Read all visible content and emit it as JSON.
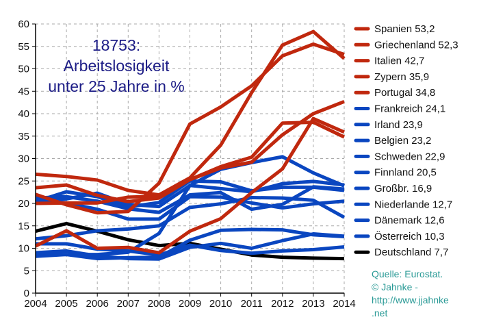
{
  "chart_data": {
    "type": "line",
    "title": [
      "18753:",
      "Arbeitslosigkeit",
      "unter 25 Jahre in %"
    ],
    "xlabel": "",
    "ylabel": "",
    "x": [
      2004,
      2005,
      2006,
      2007,
      2008,
      2009,
      2010,
      2011,
      2012,
      2013,
      2014
    ],
    "ylim": [
      0,
      60
    ],
    "yticks": [
      0,
      5,
      10,
      15,
      20,
      25,
      30,
      35,
      40,
      45,
      50,
      55,
      60
    ],
    "grid": true,
    "legend_position": "right",
    "series": [
      {
        "name": "Spanien 53,2",
        "color": "#c0280e",
        "values": [
          22.0,
          19.7,
          17.9,
          18.2,
          24.5,
          37.7,
          41.5,
          46.2,
          52.9,
          55.5,
          53.2
        ]
      },
      {
        "name": "Griechenland 52,3",
        "color": "#c0280e",
        "values": [
          26.5,
          26.0,
          25.2,
          22.9,
          21.9,
          25.7,
          33.0,
          44.7,
          55.3,
          58.3,
          52.3
        ]
      },
      {
        "name": "Italien 42,7",
        "color": "#c0280e",
        "values": [
          23.5,
          24.1,
          21.8,
          20.4,
          21.2,
          25.3,
          27.9,
          29.2,
          35.3,
          40.0,
          42.7
        ]
      },
      {
        "name": "Zypern 35,9",
        "color": "#c0280e",
        "values": [
          10.5,
          13.9,
          10.0,
          10.2,
          9.0,
          13.8,
          16.6,
          22.4,
          27.7,
          38.9,
          35.9
        ]
      },
      {
        "name": "Portugal 34,8",
        "color": "#c0280e",
        "values": [
          20.0,
          20.1,
          20.1,
          21.4,
          21.6,
          25.3,
          28.2,
          30.3,
          37.9,
          38.1,
          34.8
        ]
      },
      {
        "name": "Frankreich 24,1",
        "color": "#0a46c0",
        "values": [
          20.6,
          21.0,
          22.3,
          19.8,
          19.3,
          24.0,
          23.3,
          22.6,
          24.4,
          24.9,
          24.1
        ]
      },
      {
        "name": "Irland 23,9",
        "color": "#0a46c0",
        "values": [
          8.7,
          8.6,
          8.6,
          9.1,
          13.3,
          24.0,
          27.6,
          29.1,
          30.4,
          26.8,
          23.9
        ]
      },
      {
        "name": "Belgien 23,2",
        "color": "#0a46c0",
        "values": [
          21.2,
          21.5,
          20.5,
          18.8,
          18.0,
          21.9,
          22.4,
          18.7,
          19.8,
          23.7,
          23.2
        ]
      },
      {
        "name": "Schweden 22,9",
        "color": "#0a46c0",
        "values": [
          20.4,
          22.6,
          21.5,
          19.2,
          20.2,
          25.0,
          24.8,
          22.8,
          23.6,
          23.6,
          22.9
        ]
      },
      {
        "name": "Finnland 20,5",
        "color": "#0a46c0",
        "values": [
          20.7,
          20.1,
          18.7,
          16.5,
          16.5,
          21.5,
          21.4,
          20.1,
          19.0,
          19.9,
          20.5
        ]
      },
      {
        "name": "Großbr. 16,9",
        "color": "#0a46c0",
        "values": [
          12.1,
          12.8,
          13.9,
          14.3,
          15.0,
          19.1,
          19.9,
          21.3,
          21.2,
          20.7,
          16.9
        ]
      },
      {
        "name": "Niederlande 12,7",
        "color": "#0a46c0",
        "values": [
          9.0,
          9.4,
          8.3,
          7.7,
          7.6,
          10.2,
          11.1,
          10.0,
          11.7,
          13.2,
          12.7
        ]
      },
      {
        "name": "Dänemark 12,6",
        "color": "#0a46c0",
        "values": [
          8.2,
          8.6,
          7.7,
          7.9,
          8.0,
          11.8,
          14.0,
          14.2,
          14.1,
          13.0,
          12.6
        ]
      },
      {
        "name": "Österreich 10,3",
        "color": "#0a46c0",
        "values": [
          11.0,
          11.0,
          9.8,
          9.4,
          8.5,
          10.7,
          9.5,
          8.9,
          9.4,
          9.7,
          10.3
        ]
      },
      {
        "name": "Deutschland 7,7",
        "color": "#000000",
        "values": [
          13.8,
          15.5,
          13.8,
          11.9,
          10.6,
          11.1,
          9.8,
          8.5,
          8.0,
          7.8,
          7.7
        ]
      }
    ],
    "source": [
      "Quelle: Eurostat.",
      "© Jahnke -",
      "http://www.jjahnke",
      ".net"
    ]
  }
}
